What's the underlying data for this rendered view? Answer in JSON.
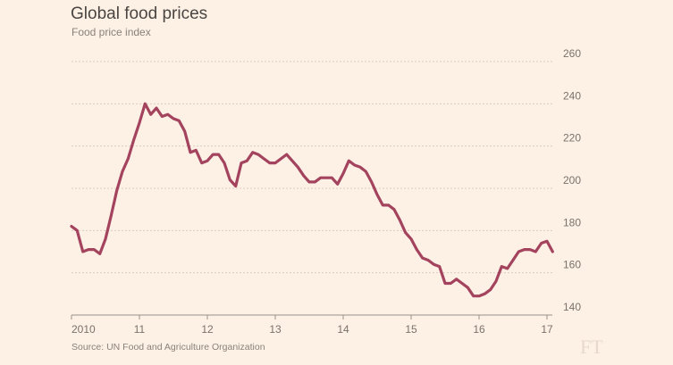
{
  "chart_data": {
    "type": "line",
    "title": "Global food prices",
    "subtitle": "Food price index",
    "source": "Source: UN Food and Agriculture Organization",
    "logo": "FT",
    "x_tick_labels": [
      "2010",
      "11",
      "12",
      "13",
      "14",
      "15",
      "16",
      "17"
    ],
    "y_ticks": [
      140,
      160,
      180,
      200,
      220,
      240,
      260
    ],
    "ylim": [
      140,
      260
    ],
    "xlim": [
      "2010-01",
      "2017-02"
    ],
    "grid": true,
    "line_color": "#a3435e",
    "background": "#fdf1e5",
    "series": [
      {
        "frequency": "monthly",
        "start": "2010-01",
        "values": [
          182,
          180,
          170,
          171,
          171,
          169,
          176,
          187,
          199,
          208,
          214,
          223,
          231,
          240,
          235,
          238,
          234,
          235,
          233,
          232,
          227,
          217,
          218,
          212,
          213,
          216,
          216,
          212,
          204,
          201,
          212,
          213,
          217,
          216,
          214,
          212,
          212,
          214,
          216,
          213,
          210,
          206,
          203,
          203,
          205,
          205,
          205,
          202,
          207,
          213,
          211,
          210,
          208,
          203,
          197,
          192,
          192,
          190,
          185,
          179,
          176,
          171,
          167,
          166,
          164,
          163,
          155,
          155,
          157,
          155,
          153,
          149,
          149,
          150,
          152,
          156,
          163,
          162,
          166,
          170,
          171,
          171,
          170,
          174,
          175,
          170
        ]
      }
    ]
  }
}
